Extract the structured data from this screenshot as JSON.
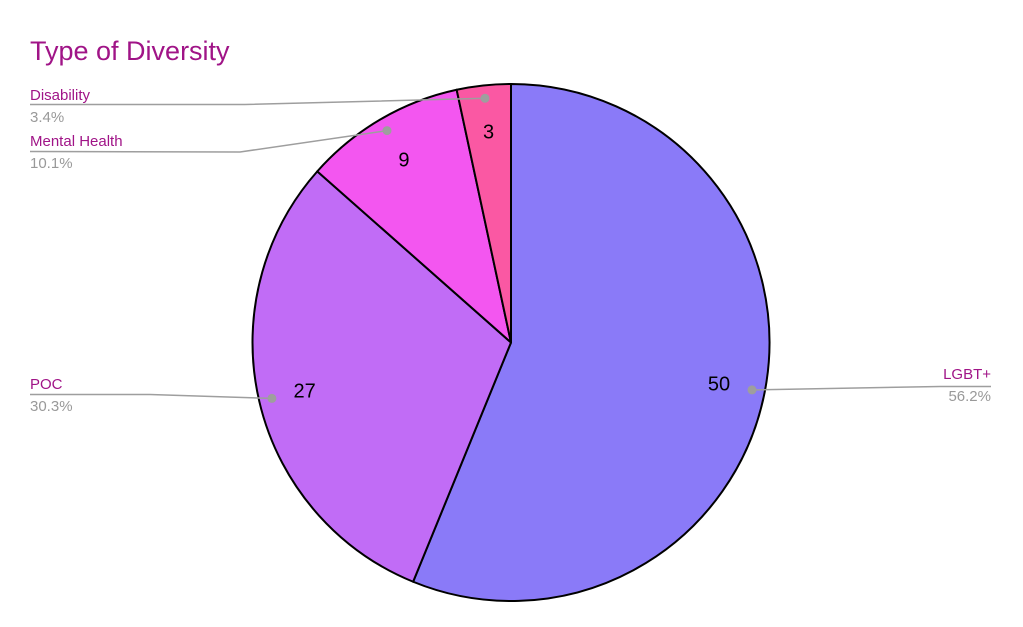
{
  "chart_data": {
    "type": "pie",
    "title": "Type of Diversity",
    "categories": [
      "LGBT+",
      "POC",
      "Mental Health",
      "Disability"
    ],
    "values": [
      50,
      27,
      9,
      3
    ],
    "percent_labels": [
      "56.2%",
      "30.3%",
      "10.1%",
      "3.4%"
    ],
    "colors": [
      "#8A7AF8",
      "#C16CF6",
      "#F356F0",
      "#FA58A3"
    ],
    "start_angle": "top",
    "direction": "clockwise",
    "legend_position": "none",
    "label_style": "outside-with-leader-lines"
  },
  "style": {
    "background": "#FFFFFF",
    "title_color": "#A01487",
    "category_label_color": "#A01487",
    "percent_label_color": "#999999",
    "leader_color": "#9E9E9E",
    "slice_border_color": "#000000",
    "value_label_color": "#000000"
  }
}
